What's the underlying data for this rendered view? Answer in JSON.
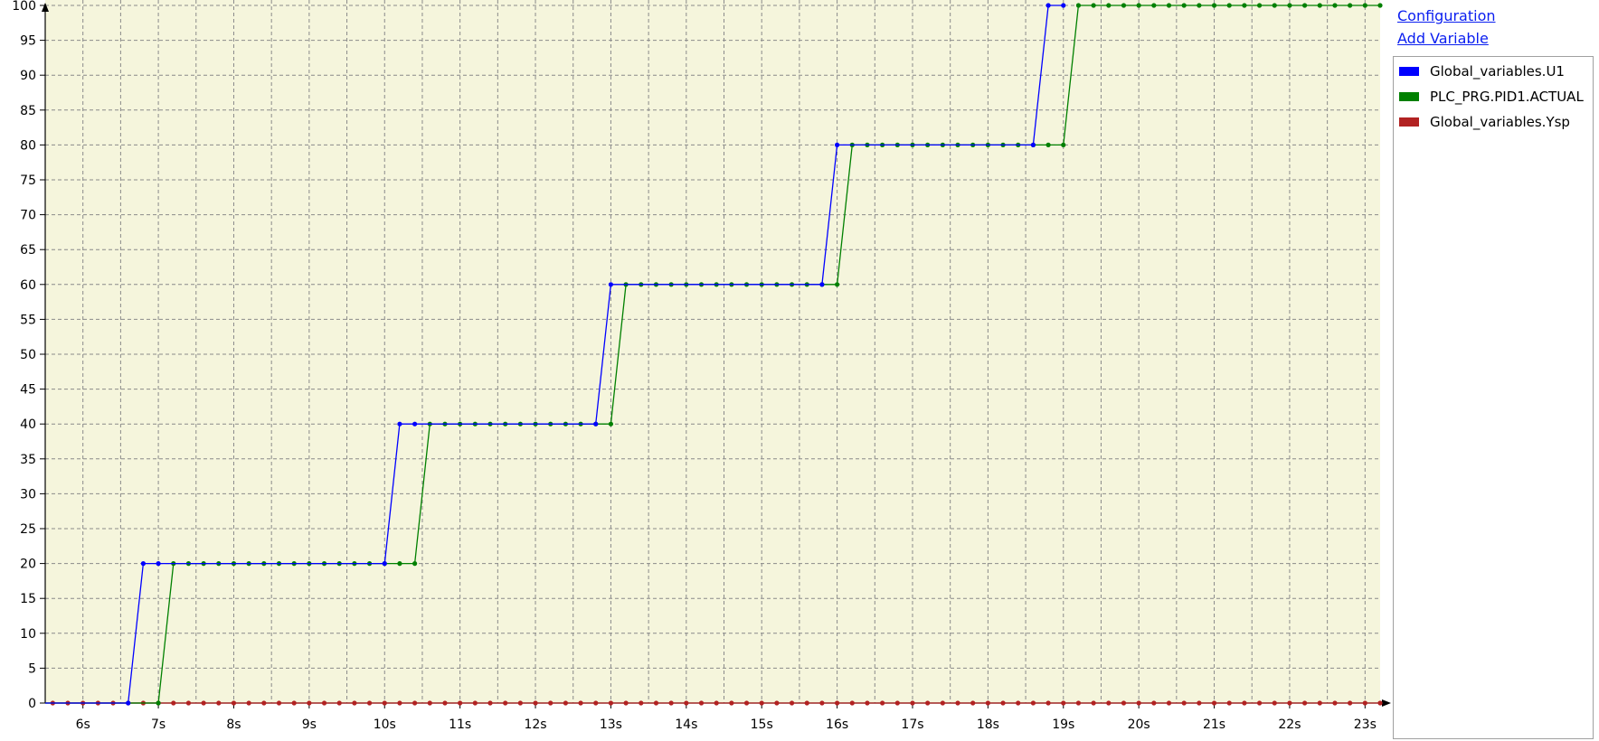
{
  "panel": {
    "configuration_link": "Configuration",
    "add_variable_link": "Add Variable"
  },
  "legend": [
    {
      "name": "Global_variables.U1",
      "color": "#0000ff"
    },
    {
      "name": "PLC_PRG.PID1.ACTUAL",
      "color": "#008000"
    },
    {
      "name": "Global_variables.Ysp",
      "color": "#b22222"
    }
  ],
  "chart_data": {
    "type": "line",
    "title": "",
    "xlabel": "",
    "ylabel": "",
    "background": "#f5f5dc",
    "grid": true,
    "legend_position": "right",
    "xlim": [
      5.5,
      23.2
    ],
    "ylim": [
      0,
      100
    ],
    "x_ticks": [
      6,
      7,
      8,
      9,
      10,
      11,
      12,
      13,
      14,
      15,
      16,
      17,
      18,
      19,
      20,
      21,
      22,
      23
    ],
    "x_tick_labels": [
      "6s",
      "7s",
      "8s",
      "9s",
      "10s",
      "11s",
      "12s",
      "13s",
      "14s",
      "15s",
      "16s",
      "17s",
      "18s",
      "19s",
      "20s",
      "21s",
      "22s",
      "23s"
    ],
    "y_ticks": [
      0,
      5,
      10,
      15,
      20,
      25,
      30,
      35,
      40,
      45,
      50,
      55,
      60,
      65,
      70,
      75,
      80,
      85,
      90,
      95,
      100
    ],
    "y_tick_labels": [
      "0",
      "5",
      "10",
      "15",
      "20",
      "25",
      "30",
      "35",
      "40",
      "45",
      "50",
      "55",
      "60",
      "65",
      "70",
      "75",
      "80",
      "85",
      "90",
      "95",
      "100"
    ],
    "series": [
      {
        "name": "Global_variables.U1",
        "color": "#0000ff",
        "x": [
          5.5,
          6.6,
          6.8,
          7.0,
          10.0,
          10.2,
          10.4,
          12.8,
          13.0,
          15.8,
          16.0,
          18.6,
          18.8,
          19.0
        ],
        "y": [
          0,
          0,
          20,
          20,
          20,
          40,
          40,
          40,
          60,
          60,
          80,
          80,
          100,
          100
        ]
      },
      {
        "name": "PLC_PRG.PID1.ACTUAL",
        "color": "#008000",
        "x": [
          5.5,
          7.0,
          7.2,
          7.4,
          7.6,
          7.8,
          8.0,
          8.2,
          8.4,
          8.6,
          8.8,
          9.0,
          9.2,
          9.4,
          9.6,
          9.8,
          10.0,
          10.2,
          10.4,
          10.6,
          10.8,
          11.0,
          11.2,
          11.4,
          11.6,
          11.8,
          12.0,
          12.2,
          12.4,
          12.6,
          12.8,
          13.0,
          13.2,
          13.4,
          13.6,
          13.8,
          14.0,
          14.2,
          14.4,
          14.6,
          14.8,
          15.0,
          15.2,
          15.4,
          15.6,
          15.8,
          16.0,
          16.2,
          16.4,
          16.6,
          16.8,
          17.0,
          17.2,
          17.4,
          17.6,
          17.8,
          18.0,
          18.2,
          18.4,
          18.6,
          18.8,
          19.0,
          19.2,
          19.4,
          19.6,
          19.8,
          20.0,
          20.2,
          20.4,
          20.6,
          20.8,
          21.0,
          21.2,
          21.4,
          21.6,
          21.8,
          22.0,
          22.2,
          22.4,
          22.6,
          22.8,
          23.0,
          23.2
        ],
        "y": [
          0,
          0,
          20,
          20,
          20,
          20,
          20,
          20,
          20,
          20,
          20,
          20,
          20,
          20,
          20,
          20,
          20,
          20,
          20,
          40,
          40,
          40,
          40,
          40,
          40,
          40,
          40,
          40,
          40,
          40,
          40,
          40,
          60,
          60,
          60,
          60,
          60,
          60,
          60,
          60,
          60,
          60,
          60,
          60,
          60,
          60,
          60,
          80,
          80,
          80,
          80,
          80,
          80,
          80,
          80,
          80,
          80,
          80,
          80,
          80,
          80,
          80,
          100,
          100,
          100,
          100,
          100,
          100,
          100,
          100,
          100,
          100,
          100,
          100,
          100,
          100,
          100,
          100,
          100,
          100,
          100,
          100,
          100
        ]
      },
      {
        "name": "Global_variables.Ysp",
        "color": "#b22222",
        "x": [
          5.6,
          5.8,
          6.0,
          6.2,
          6.4,
          6.6,
          6.8,
          7.0,
          7.2,
          7.4,
          7.6,
          7.8,
          8.0,
          8.2,
          8.4,
          8.6,
          8.8,
          9.0,
          9.2,
          9.4,
          9.6,
          9.8,
          10.0,
          10.2,
          10.4,
          10.6,
          10.8,
          11.0,
          11.2,
          11.4,
          11.6,
          11.8,
          12.0,
          12.2,
          12.4,
          12.6,
          12.8,
          13.0,
          13.2,
          13.4,
          13.6,
          13.8,
          14.0,
          14.2,
          14.4,
          14.6,
          14.8,
          15.0,
          15.2,
          15.4,
          15.6,
          15.8,
          16.0,
          16.2,
          16.4,
          16.6,
          16.8,
          17.0,
          17.2,
          17.4,
          17.6,
          17.8,
          18.0,
          18.2,
          18.4,
          18.6,
          18.8,
          19.0,
          19.2,
          19.4,
          19.6,
          19.8,
          20.0,
          20.2,
          20.4,
          20.6,
          20.8,
          21.0,
          21.2,
          21.4,
          21.6,
          21.8,
          22.0,
          22.2,
          22.4,
          22.6,
          22.8,
          23.0,
          23.2
        ],
        "y": [
          0,
          0,
          0,
          0,
          0,
          0,
          0,
          0,
          0,
          0,
          0,
          0,
          0,
          0,
          0,
          0,
          0,
          0,
          0,
          0,
          0,
          0,
          0,
          0,
          0,
          0,
          0,
          0,
          0,
          0,
          0,
          0,
          0,
          0,
          0,
          0,
          0,
          0,
          0,
          0,
          0,
          0,
          0,
          0,
          0,
          0,
          0,
          0,
          0,
          0,
          0,
          0,
          0,
          0,
          0,
          0,
          0,
          0,
          0,
          0,
          0,
          0,
          0,
          0,
          0,
          0,
          0,
          0,
          0,
          0,
          0,
          0,
          0,
          0,
          0,
          0,
          0,
          0,
          0,
          0,
          0,
          0,
          0,
          0,
          0,
          0,
          0,
          0,
          0
        ]
      }
    ]
  }
}
